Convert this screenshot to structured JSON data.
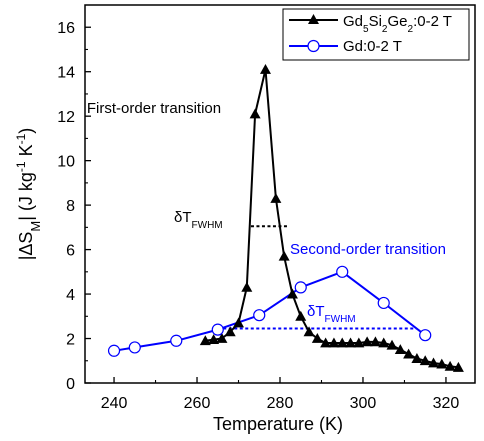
{
  "chart_data": {
    "type": "line",
    "xlabel": "Temperature (K)",
    "ylabel": "|ΔS_M| (J kg^-1 K^-1)",
    "xlim": [
      233,
      327
    ],
    "ylim": [
      0,
      17
    ],
    "xticks": [
      240,
      260,
      280,
      300,
      320
    ],
    "yticks": [
      0,
      2,
      4,
      6,
      8,
      10,
      12,
      14,
      16
    ],
    "grid": false,
    "legend_position": "top-right",
    "series": [
      {
        "name": "Gd5Si2Ge2:0-2 T",
        "color": "#000000",
        "marker": "triangle-filled",
        "x": [
          262,
          264,
          266,
          268,
          270,
          272,
          274,
          276.5,
          279,
          281,
          283,
          285,
          287,
          289,
          291,
          293,
          295,
          297,
          299,
          301,
          303,
          305,
          307,
          309,
          311,
          313,
          315,
          317,
          319,
          321,
          323
        ],
        "y": [
          1.9,
          1.95,
          2.0,
          2.3,
          2.7,
          4.3,
          12.1,
          14.1,
          8.3,
          5.7,
          4.0,
          3.0,
          2.3,
          2.0,
          1.8,
          1.8,
          1.8,
          1.8,
          1.8,
          1.85,
          1.85,
          1.8,
          1.7,
          1.5,
          1.3,
          1.1,
          1.0,
          0.9,
          0.85,
          0.75,
          0.7
        ]
      },
      {
        "name": "Gd:0-2 T",
        "color": "#0000ff",
        "marker": "circle-open",
        "x": [
          240,
          245,
          255,
          265,
          275,
          285,
          295,
          305,
          315
        ],
        "y": [
          1.45,
          1.6,
          1.9,
          2.4,
          3.05,
          4.3,
          5.0,
          3.6,
          2.15
        ]
      }
    ],
    "fwhm_lines": [
      {
        "series": "Gd5Si2Ge2:0-2 T",
        "x": [
          273,
          282
        ],
        "y": 7.05,
        "color": "#000000"
      },
      {
        "series": "Gd:0-2 T",
        "x": [
          265,
          313
        ],
        "y": 2.45,
        "color": "#0000ff"
      }
    ],
    "annotations": [
      {
        "text": "First-order transition",
        "color": "#000000"
      },
      {
        "text": "δT_FWHM",
        "color": "#000000"
      },
      {
        "text": "Second-order transition",
        "color": "#0000ff"
      },
      {
        "text": "δT_FWHM",
        "color": "#0000ff"
      }
    ]
  }
}
